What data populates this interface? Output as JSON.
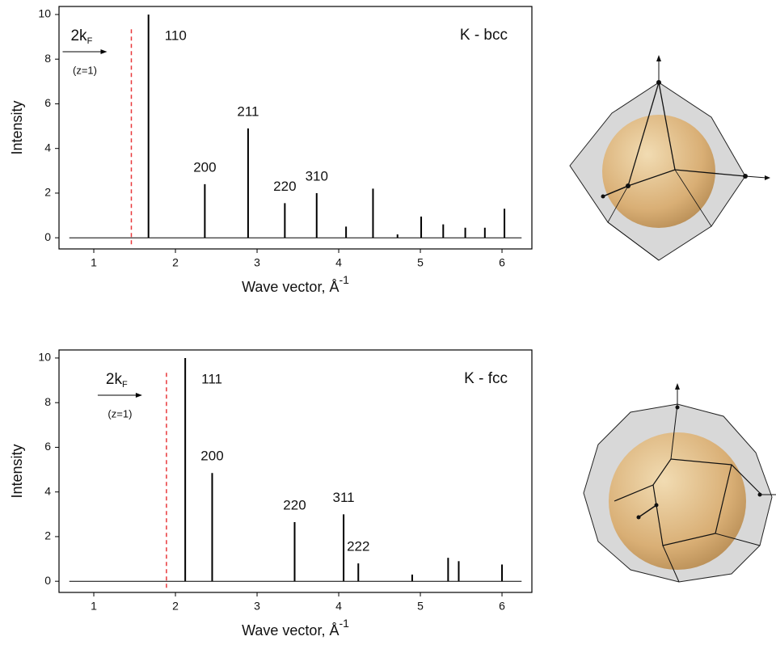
{
  "chart_data": [
    {
      "type": "stem",
      "title": "K - bcc",
      "xlabel": "Wave vector, Å",
      "xlabel_sup": "-1",
      "ylabel": "Intensity",
      "x": [
        1.67,
        2.36,
        2.89,
        3.34,
        3.73,
        4.09,
        4.42,
        4.72,
        5.01,
        5.28,
        5.55,
        5.79,
        6.03
      ],
      "values": [
        10,
        2.4,
        4.9,
        1.55,
        2.0,
        0.5,
        2.2,
        0.15,
        0.95,
        0.6,
        0.45,
        0.45,
        1.3
      ],
      "peak_labels": [
        "110",
        "200",
        "211",
        "220",
        "310",
        null,
        null,
        null,
        null,
        null,
        null,
        null,
        null
      ],
      "color": "#000000",
      "baseline_x": [
        0.7,
        6.24
      ],
      "kf_x": 1.46,
      "kf_color": "#e8383b",
      "kf_label": "2k",
      "kf_subscript": "F",
      "kf_note": "(z=1)",
      "xlim": [
        0.574,
        6.366
      ],
      "ylim": [
        -0.5,
        10.36
      ],
      "xticks": [
        1,
        2,
        3,
        4,
        5,
        6
      ],
      "yticks": [
        0,
        2,
        4,
        6,
        8,
        10
      ]
    },
    {
      "type": "stem",
      "title": "K - fcc",
      "xlabel": "Wave vector, Å",
      "xlabel_sup": "-1",
      "ylabel": "Intensity",
      "x": [
        2.12,
        2.45,
        3.46,
        4.06,
        4.24,
        4.9,
        5.34,
        5.47,
        6.0
      ],
      "values": [
        10,
        4.85,
        2.65,
        3.0,
        0.8,
        0.3,
        1.05,
        0.9,
        0.75
      ],
      "peak_labels": [
        "111",
        "200",
        "220",
        "311",
        "222",
        null,
        null,
        null,
        null
      ],
      "color": "#000000",
      "baseline_x": [
        0.7,
        6.24
      ],
      "kf_x": 1.89,
      "kf_color": "#e8383b",
      "kf_label": "2k",
      "kf_subscript": "F",
      "kf_note": "(z=1)",
      "xlim": [
        0.574,
        6.366
      ],
      "ylim": [
        -0.5,
        10.36
      ],
      "xticks": [
        1,
        2,
        3,
        4,
        5,
        6
      ],
      "yticks": [
        0,
        2,
        4,
        6,
        8,
        10
      ]
    }
  ]
}
